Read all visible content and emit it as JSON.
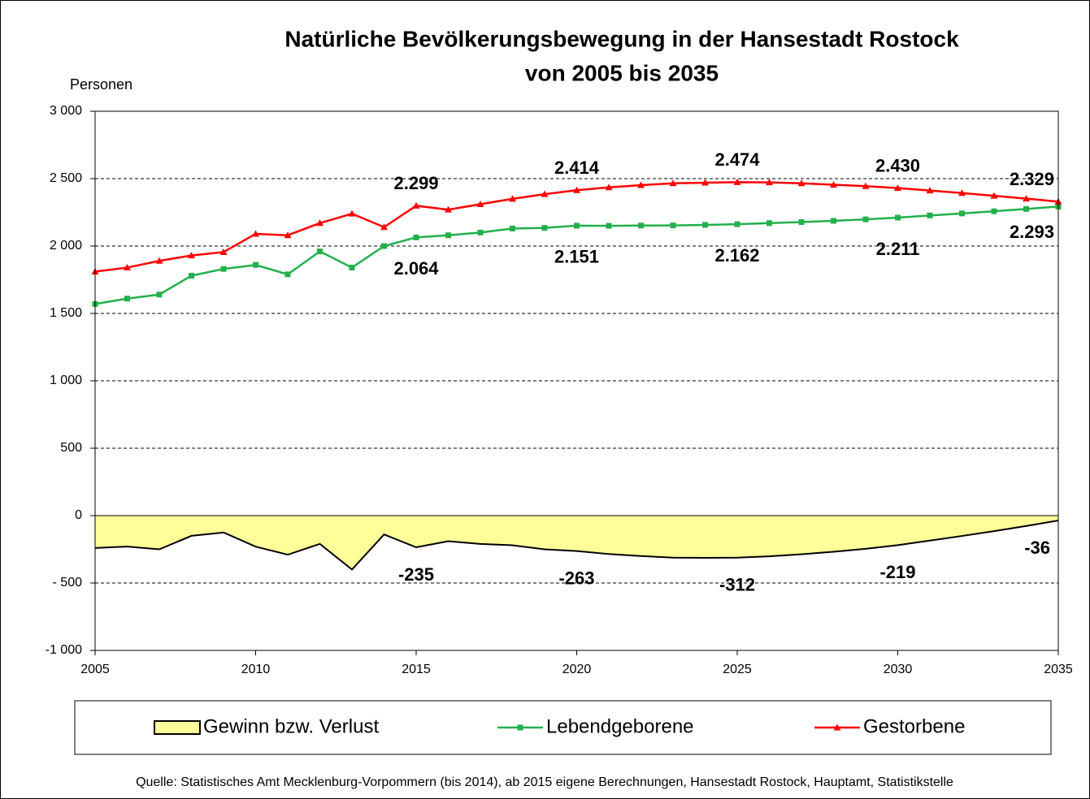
{
  "chart_data": {
    "type": "line",
    "title": [
      "Natürliche Bevölkerungsbewegung in der Hansestadt Rostock",
      "von 2005 bis 2035"
    ],
    "y_label": "Personen",
    "source": "Quelle: Statistisches Amt Mecklenburg-Vorpommern (bis 2014), ab 2015 eigene Berechnungen, Hansestadt Rostock, Hauptamt, Statistikstelle",
    "x": [
      2005,
      2006,
      2007,
      2008,
      2009,
      2010,
      2011,
      2012,
      2013,
      2014,
      2015,
      2016,
      2017,
      2018,
      2019,
      2020,
      2021,
      2022,
      2023,
      2024,
      2025,
      2026,
      2027,
      2028,
      2029,
      2030,
      2031,
      2032,
      2033,
      2034,
      2035
    ],
    "xlim": [
      2005,
      2035
    ],
    "xticks": [
      2005,
      2010,
      2015,
      2020,
      2025,
      2030,
      2035
    ],
    "ylim": [
      -1000,
      3000
    ],
    "yticks": [
      {
        "value": -1000,
        "label": "-1 000"
      },
      {
        "value": -500,
        "label": "- 500"
      },
      0,
      500,
      {
        "value": 1000,
        "label": "1 000"
      },
      {
        "value": 1500,
        "label": "1 500"
      },
      {
        "value": 2000,
        "label": "2 000"
      },
      {
        "value": 2500,
        "label": "2 500"
      },
      {
        "value": 3000,
        "label": "3 000"
      }
    ],
    "grid": true,
    "series": [
      {
        "name": "Gewinn bzw. Verlust",
        "kind": "area",
        "color": "#ffff99",
        "values": [
          -240,
          -230,
          -250,
          -150,
          -125,
          -230,
          -290,
          -210,
          -400,
          -140,
          -235,
          -190,
          -210,
          -220,
          -250,
          -263,
          -285,
          -300,
          -312,
          -313,
          -312,
          -302,
          -287,
          -268,
          -246,
          -219,
          -185,
          -151,
          -115,
          -77,
          -36
        ]
      },
      {
        "name": "Lebendgeborene",
        "kind": "line",
        "marker": "square",
        "color": "#22b04b",
        "values": [
          1570,
          1610,
          1640,
          1780,
          1830,
          1860,
          1790,
          1960,
          1840,
          2000,
          2064,
          2080,
          2100,
          2130,
          2135,
          2151,
          2150,
          2152,
          2153,
          2157,
          2162,
          2170,
          2178,
          2187,
          2198,
          2211,
          2227,
          2242,
          2258,
          2275,
          2293
        ],
        "value_labels": [
          null,
          null,
          null,
          null,
          null,
          null,
          null,
          null,
          null,
          null,
          "2.064",
          null,
          null,
          null,
          null,
          "2.151",
          null,
          null,
          null,
          null,
          "2.162",
          null,
          null,
          null,
          null,
          "2.211",
          null,
          null,
          null,
          null,
          "2.293"
        ]
      },
      {
        "name": "Gestorbene",
        "kind": "line",
        "marker": "triangle",
        "color": "#ff0000",
        "values": [
          1810,
          1840,
          1890,
          1930,
          1955,
          2090,
          2080,
          2170,
          2240,
          2140,
          2299,
          2270,
          2310,
          2350,
          2385,
          2414,
          2435,
          2452,
          2465,
          2470,
          2474,
          2472,
          2465,
          2455,
          2444,
          2430,
          2412,
          2393,
          2373,
          2352,
          2329
        ],
        "value_labels": [
          null,
          null,
          null,
          null,
          null,
          null,
          null,
          null,
          null,
          null,
          "2.299",
          null,
          null,
          null,
          null,
          "2.414",
          null,
          null,
          null,
          null,
          "2.474",
          null,
          null,
          null,
          null,
          "2.430",
          null,
          null,
          null,
          null,
          "2.329"
        ]
      }
    ],
    "labeled_points": [
      10,
      15,
      20,
      25,
      30
    ]
  }
}
